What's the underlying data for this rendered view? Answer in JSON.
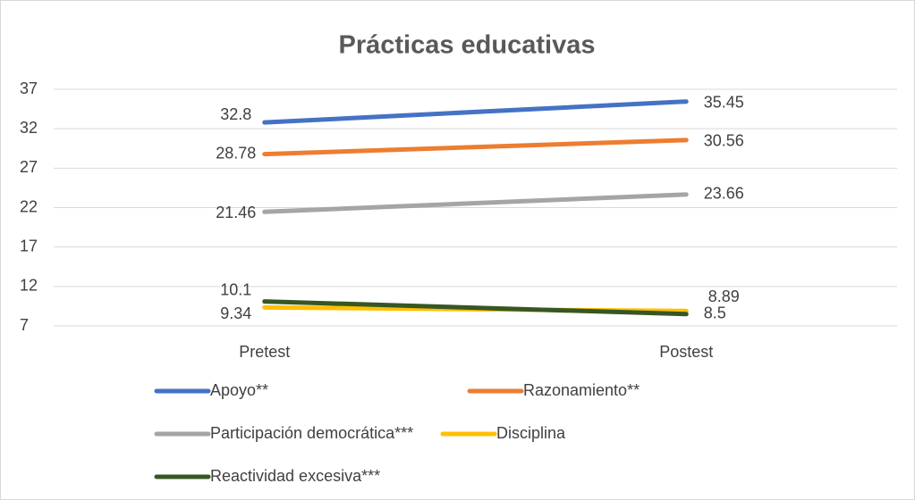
{
  "chart_data": {
    "type": "line",
    "title": "Prácticas educativas",
    "categories": [
      "Pretest",
      "Postest"
    ],
    "series": [
      {
        "name": "Apoyo**",
        "color": "#4472c4",
        "values": [
          32.8,
          35.45
        ]
      },
      {
        "name": "Razonamiento**",
        "color": "#ed7d31",
        "values": [
          28.78,
          30.56
        ]
      },
      {
        "name": "Participación democrática***",
        "color": "#a5a5a5",
        "values": [
          21.46,
          23.66
        ]
      },
      {
        "name": "Disciplina",
        "color": "#ffc000",
        "values": [
          9.34,
          8.89
        ]
      },
      {
        "name": "Reactividad excesiva***",
        "color": "#375623",
        "values": [
          10.1,
          8.5
        ]
      }
    ],
    "ylim": [
      7,
      37
    ],
    "yticks": [
      7,
      12,
      17,
      22,
      27,
      32,
      37
    ],
    "grid": true,
    "legend": "bottom"
  }
}
